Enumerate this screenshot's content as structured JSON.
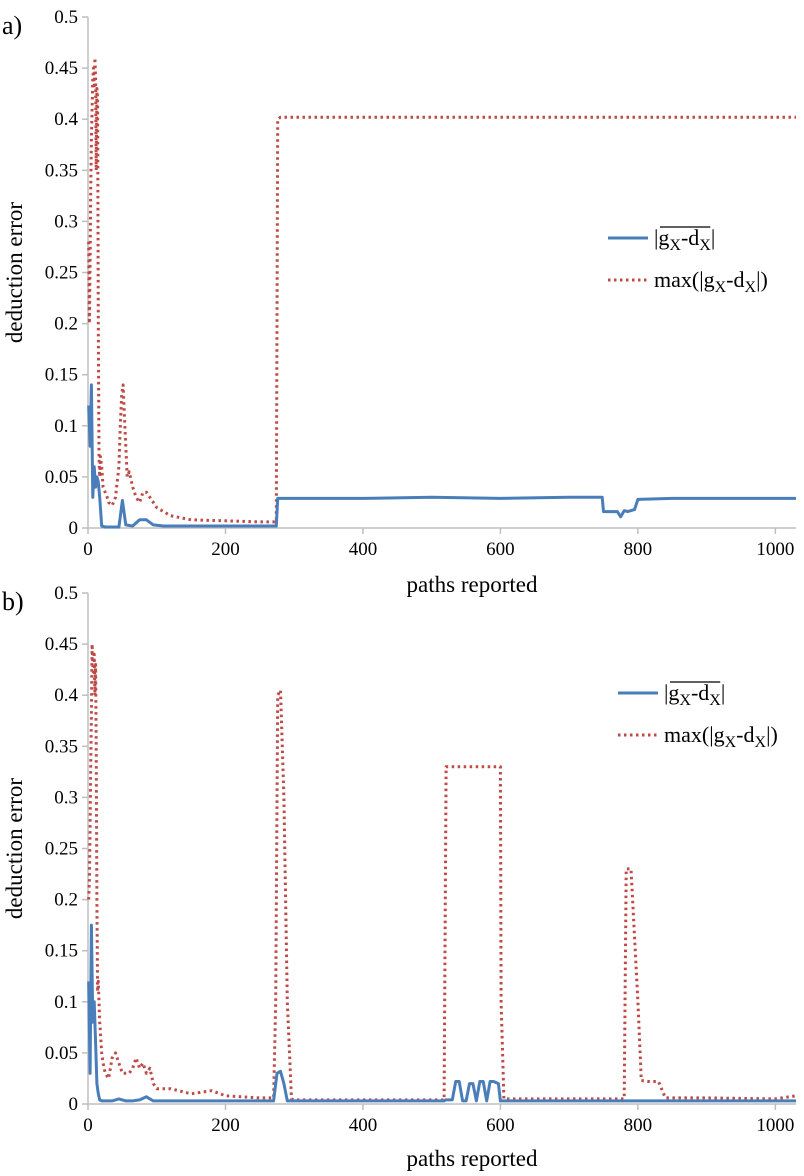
{
  "chart_data": [
    {
      "panel_label": "a)",
      "type": "line",
      "title": "",
      "xlabel": "paths reported",
      "ylabel": "deduction error",
      "xlim": [
        0,
        1030
      ],
      "ylim": [
        0,
        0.5
      ],
      "x_ticks": [
        0,
        200,
        400,
        600,
        800,
        1000
      ],
      "x_tick_labels": [
        "0",
        "200",
        "400",
        "600",
        "800",
        "1000"
      ],
      "y_ticks": [
        0,
        0.05,
        0.1,
        0.15,
        0.2,
        0.25,
        0.3,
        0.35,
        0.4,
        0.45,
        0.5
      ],
      "y_tick_labels": [
        "0",
        "0.05",
        "0.1",
        "0.15",
        "0.2",
        "0.25",
        "0.3",
        "0.35",
        "0.4",
        "0.45",
        "0.5"
      ],
      "legend": {
        "position": "right",
        "entries": [
          {
            "main": "|g",
            "sub1": "X",
            "mid": "-d",
            "sub2": "X",
            "end": "|",
            "overline": true
          },
          {
            "main": "max(|g",
            "sub1": "X",
            "mid": "-d",
            "sub2": "X",
            "end": "|)",
            "overline": false
          }
        ]
      },
      "series": [
        {
          "name": "mean |g_X-d_X|",
          "color": "#4a7ebb",
          "style": "solid",
          "x": [
            1,
            3,
            5,
            7,
            9,
            11,
            13,
            15,
            17,
            20,
            25,
            35,
            45,
            50,
            55,
            65,
            75,
            85,
            95,
            110,
            150,
            200,
            270,
            274,
            276,
            290,
            400,
            500,
            600,
            700,
            748,
            750,
            770,
            775,
            780,
            785,
            795,
            800,
            850,
            900,
            1000,
            1030
          ],
          "y": [
            0.12,
            0.08,
            0.14,
            0.03,
            0.06,
            0.04,
            0.05,
            0.045,
            0.03,
            0.002,
            0.001,
            0.001,
            0.001,
            0.027,
            0.003,
            0.002,
            0.008,
            0.008,
            0.003,
            0.002,
            0.002,
            0.002,
            0.002,
            0.002,
            0.029,
            0.029,
            0.029,
            0.03,
            0.029,
            0.03,
            0.03,
            0.016,
            0.016,
            0.011,
            0.017,
            0.016,
            0.018,
            0.028,
            0.029,
            0.029,
            0.029,
            0.029
          ]
        },
        {
          "name": "max(|g_X-d_X|)",
          "color": "#be4b48",
          "style": "dotted",
          "x": [
            1,
            2,
            3,
            4,
            5,
            6,
            7,
            8,
            9,
            10,
            11,
            12,
            13,
            14,
            15,
            16,
            17,
            18,
            20,
            22,
            25,
            28,
            30,
            35,
            40,
            45,
            47,
            49,
            51,
            53,
            55,
            57,
            60,
            65,
            70,
            75,
            80,
            85,
            90,
            100,
            120,
            150,
            200,
            250,
            270,
            274,
            276,
            280,
            400,
            600,
            800,
            1000,
            1030
          ],
          "y": [
            0.28,
            0.2,
            0.26,
            0.33,
            0.38,
            0.41,
            0.44,
            0.45,
            0.43,
            0.46,
            0.44,
            0.35,
            0.43,
            0.42,
            0.2,
            0.07,
            0.05,
            0.07,
            0.06,
            0.04,
            0.035,
            0.03,
            0.025,
            0.022,
            0.03,
            0.06,
            0.1,
            0.13,
            0.14,
            0.11,
            0.08,
            0.05,
            0.055,
            0.04,
            0.03,
            0.025,
            0.035,
            0.035,
            0.03,
            0.02,
            0.012,
            0.008,
            0.007,
            0.006,
            0.006,
            0.006,
            0.4,
            0.402,
            0.402,
            0.402,
            0.402,
            0.402,
            0.402
          ]
        }
      ]
    },
    {
      "panel_label": "b)",
      "type": "line",
      "title": "",
      "xlabel": "paths reported",
      "ylabel": "deduction error",
      "xlim": [
        0,
        1030
      ],
      "ylim": [
        0,
        0.5
      ],
      "x_ticks": [
        0,
        200,
        400,
        600,
        800,
        1000
      ],
      "x_tick_labels": [
        "0",
        "200",
        "400",
        "600",
        "800",
        "1000"
      ],
      "y_ticks": [
        0,
        0.05,
        0.1,
        0.15,
        0.2,
        0.25,
        0.3,
        0.35,
        0.4,
        0.45,
        0.5
      ],
      "y_tick_labels": [
        "0",
        "0.05",
        "0.1",
        "0.15",
        "0.2",
        "0.25",
        "0.3",
        "0.35",
        "0.4",
        "0.45",
        "0.5"
      ],
      "legend": {
        "position": "top-right",
        "entries": [
          {
            "main": "|g",
            "sub1": "X",
            "mid": "-d",
            "sub2": "X",
            "end": "|",
            "overline": true
          },
          {
            "main": "max(|g",
            "sub1": "X",
            "mid": "-d",
            "sub2": "X",
            "end": "|)",
            "overline": false
          }
        ]
      },
      "series": [
        {
          "name": "mean |g_X-d_X|",
          "color": "#4a7ebb",
          "style": "solid",
          "x": [
            1,
            3,
            5,
            7,
            9,
            11,
            13,
            15,
            17,
            20,
            25,
            35,
            45,
            55,
            65,
            75,
            85,
            95,
            110,
            150,
            200,
            250,
            270,
            275,
            280,
            285,
            290,
            295,
            400,
            500,
            518,
            520,
            530,
            535,
            540,
            545,
            550,
            555,
            560,
            565,
            570,
            575,
            580,
            585,
            590,
            597,
            600,
            700,
            790,
            800,
            900,
            1000,
            1030
          ],
          "y": [
            0.12,
            0.03,
            0.175,
            0.08,
            0.1,
            0.06,
            0.02,
            0.01,
            0.004,
            0.003,
            0.003,
            0.003,
            0.005,
            0.003,
            0.003,
            0.004,
            0.007,
            0.003,
            0.003,
            0.003,
            0.003,
            0.003,
            0.003,
            0.03,
            0.032,
            0.02,
            0.003,
            0.003,
            0.003,
            0.003,
            0.003,
            0.004,
            0.004,
            0.022,
            0.022,
            0.003,
            0.003,
            0.02,
            0.02,
            0.003,
            0.022,
            0.022,
            0.003,
            0.022,
            0.022,
            0.02,
            0.003,
            0.003,
            0.003,
            0.003,
            0.003,
            0.003,
            0.003
          ]
        },
        {
          "name": "max(|g_X-d_X|)",
          "color": "#be4b48",
          "style": "dotted",
          "x": [
            1,
            2,
            3,
            4,
            5,
            6,
            7,
            8,
            9,
            10,
            11,
            12,
            13,
            14,
            15,
            16,
            17,
            18,
            20,
            22,
            25,
            30,
            35,
            40,
            45,
            50,
            60,
            65,
            70,
            75,
            80,
            85,
            90,
            95,
            100,
            120,
            150,
            180,
            200,
            250,
            270,
            273,
            276,
            280,
            285,
            290,
            296,
            300,
            400,
            500,
            518,
            521,
            600,
            601,
            605,
            700,
            780,
            783,
            790,
            800,
            805,
            815,
            830,
            840,
            900,
            1000,
            1030
          ],
          "y": [
            0.2,
            0.22,
            0.27,
            0.33,
            0.38,
            0.45,
            0.43,
            0.42,
            0.44,
            0.4,
            0.43,
            0.35,
            0.2,
            0.11,
            0.12,
            0.1,
            0.08,
            0.07,
            0.05,
            0.04,
            0.03,
            0.025,
            0.045,
            0.05,
            0.04,
            0.03,
            0.03,
            0.035,
            0.045,
            0.035,
            0.04,
            0.03,
            0.035,
            0.02,
            0.015,
            0.015,
            0.01,
            0.013,
            0.008,
            0.006,
            0.006,
            0.1,
            0.4,
            0.405,
            0.3,
            0.1,
            0.005,
            0.004,
            0.004,
            0.004,
            0.004,
            0.33,
            0.33,
            0.1,
            0.005,
            0.005,
            0.005,
            0.23,
            0.23,
            0.1,
            0.023,
            0.022,
            0.022,
            0.006,
            0.006,
            0.005,
            0.008
          ]
        }
      ]
    }
  ]
}
